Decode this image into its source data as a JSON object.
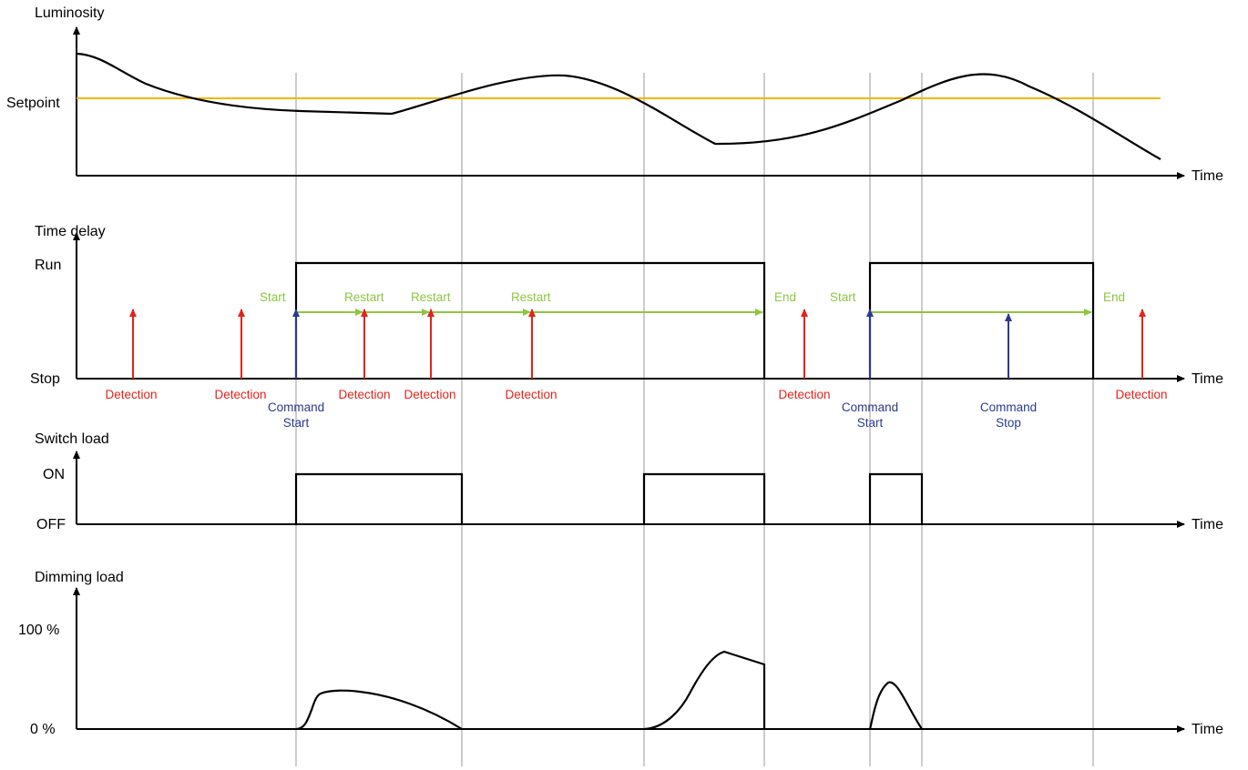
{
  "luminosity": {
    "title": "Luminosity",
    "setpoint_label": "Setpoint",
    "time_label": "Time",
    "setpoint_color": "#f7b500"
  },
  "time_delay": {
    "title": "Time delay",
    "run_label": "Run",
    "stop_label": "Stop",
    "time_label": "Time",
    "labels": {
      "detection": "Detection",
      "command": "Command",
      "start": "Start",
      "stop": "Stop",
      "restart": "Restart",
      "end": "End"
    }
  },
  "switch_load": {
    "title": "Switch load",
    "on_label": "ON",
    "off_label": "OFF",
    "time_label": "Time"
  },
  "dimming_load": {
    "title": "Dimming load",
    "max_label": "100 %",
    "min_label": "0 %",
    "time_label": "Time"
  },
  "colors": {
    "detection": "#e2231a",
    "command": "#2b3990",
    "timer": "#8dc63f",
    "gridline": "#9a9a9a",
    "curve": "#000000"
  }
}
